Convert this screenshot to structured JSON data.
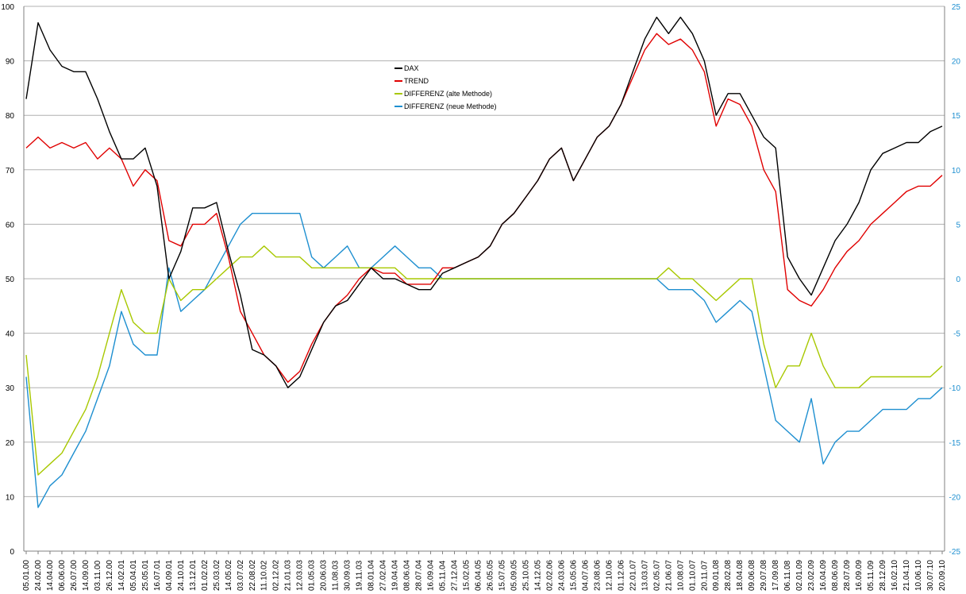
{
  "chart_data": {
    "type": "line",
    "title": "",
    "xlabel": "",
    "ylabel": "",
    "y2label": "",
    "ylim": [
      0,
      100
    ],
    "y2lim": [
      -25,
      25
    ],
    "yticks": [
      0,
      10,
      20,
      30,
      40,
      50,
      60,
      70,
      80,
      90,
      100
    ],
    "y2ticks": [
      -25,
      -20,
      -15,
      -10,
      -5,
      0,
      5,
      10,
      15,
      20,
      25
    ],
    "grid": "horizontal",
    "legend_position": "upper-center",
    "x": [
      "05.01.00",
      "24.02.00",
      "14.04.00",
      "06.06.00",
      "26.07.00",
      "14.09.00",
      "03.11.00",
      "26.12.00",
      "14.02.01",
      "05.04.01",
      "25.05.01",
      "16.07.01",
      "04.09.01",
      "24.10.01",
      "13.12.01",
      "01.02.02",
      "25.03.02",
      "14.05.02",
      "03.07.02",
      "22.08.02",
      "11.10.02",
      "02.12.02",
      "21.01.03",
      "12.03.03",
      "01.05.03",
      "20.06.03",
      "11.08.03",
      "30.09.03",
      "19.11.03",
      "08.01.04",
      "27.02.04",
      "19.04.04",
      "08.06.04",
      "28.07.04",
      "16.09.04",
      "05.11.04",
      "27.12.04",
      "15.02.05",
      "06.04.05",
      "26.05.05",
      "15.07.05",
      "05.09.05",
      "25.10.05",
      "14.12.05",
      "02.02.06",
      "24.03.06",
      "15.05.06",
      "04.07.06",
      "23.08.06",
      "12.10.06",
      "01.12.06",
      "22.01.07",
      "13.03.07",
      "02.05.07",
      "21.06.07",
      "10.08.07",
      "01.10.07",
      "20.11.07",
      "09.01.08",
      "28.02.08",
      "18.04.08",
      "09.06.08",
      "29.07.08",
      "17.09.08",
      "06.11.08",
      "02.01.09",
      "23.02.09",
      "16.04.09",
      "08.06.09",
      "28.07.09",
      "16.09.09",
      "05.11.09",
      "28.12.09",
      "16.02.10",
      "21.04.10",
      "10.06.10",
      "30.07.10",
      "20.09.10"
    ],
    "series": [
      {
        "name": "DAX",
        "axis": "left",
        "color": "#000000",
        "values": [
          83,
          97,
          92,
          89,
          88,
          88,
          83,
          77,
          72,
          72,
          74,
          67,
          50,
          55,
          63,
          63,
          64,
          55,
          47,
          37,
          36,
          34,
          30,
          32,
          37,
          42,
          45,
          46,
          49,
          52,
          50,
          50,
          49,
          48,
          48,
          51,
          52,
          53,
          54,
          56,
          60,
          62,
          65,
          68,
          72,
          74,
          68,
          72,
          76,
          78,
          82,
          88,
          94,
          98,
          95,
          98,
          95,
          90,
          80,
          84,
          84,
          80,
          76,
          74,
          54,
          50,
          47,
          52,
          57,
          60,
          64,
          70,
          73,
          74,
          75,
          75,
          77,
          78
        ]
      },
      {
        "name": "TREND",
        "axis": "left",
        "color": "#e00000",
        "values": [
          74,
          76,
          74,
          75,
          74,
          75,
          72,
          74,
          72,
          67,
          70,
          68,
          57,
          56,
          60,
          60,
          62,
          54,
          44,
          40,
          36,
          34,
          31,
          33,
          38,
          42,
          45,
          47,
          50,
          52,
          51,
          51,
          49,
          49,
          49,
          52,
          52,
          53,
          54,
          56,
          60,
          62,
          65,
          68,
          72,
          74,
          68,
          72,
          76,
          78,
          82,
          87,
          92,
          95,
          93,
          94,
          92,
          88,
          78,
          83,
          82,
          78,
          70,
          66,
          48,
          46,
          45,
          48,
          52,
          55,
          57,
          60,
          62,
          64,
          66,
          67,
          67,
          69
        ]
      },
      {
        "name": "DIFFERENZ (alte Methode)",
        "axis": "right",
        "color": "#a8c800",
        "values": [
          -7,
          -18,
          -17,
          -16,
          -14,
          -12,
          -9,
          -5,
          -1,
          -4,
          -5,
          -5,
          0,
          -2,
          -1,
          -1,
          0,
          1,
          2,
          2,
          3,
          2,
          2,
          2,
          1,
          1,
          1,
          1,
          1,
          1,
          1,
          1,
          0,
          0,
          0,
          0,
          0,
          0,
          0,
          0,
          0,
          0,
          0,
          0,
          0,
          0,
          0,
          0,
          0,
          0,
          0,
          0,
          0,
          0,
          1,
          0,
          0,
          -1,
          -2,
          -1,
          0,
          0,
          -6,
          -10,
          -8,
          -8,
          -5,
          -8,
          -10,
          -10,
          -10,
          -9,
          -9,
          -9,
          -9,
          -9,
          -9,
          -8
        ]
      },
      {
        "name": "DIFFERENZ (neue Methode)",
        "axis": "right",
        "color": "#1e8fd0",
        "values": [
          -9,
          -21,
          -19,
          -18,
          -16,
          -14,
          -11,
          -8,
          -3,
          -6,
          -7,
          -7,
          1,
          -3,
          -2,
          -1,
          1,
          3,
          5,
          6,
          6,
          6,
          6,
          6,
          2,
          1,
          2,
          3,
          1,
          1,
          2,
          3,
          2,
          1,
          1,
          0,
          0,
          0,
          0,
          0,
          0,
          0,
          0,
          0,
          0,
          0,
          0,
          0,
          0,
          0,
          0,
          0,
          0,
          0,
          -1,
          -1,
          -1,
          -2,
          -4,
          -3,
          -2,
          -3,
          -8,
          -13,
          -14,
          -15,
          -11,
          -17,
          -15,
          -14,
          -14,
          -13,
          -12,
          -12,
          -12,
          -11,
          -11,
          -10
        ]
      }
    ]
  }
}
